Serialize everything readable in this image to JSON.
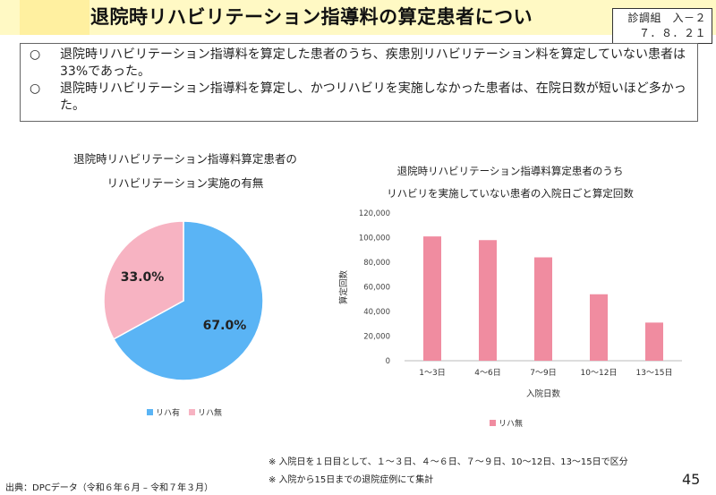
{
  "header": {
    "title": "退院時リハビリテーション指導料の算定患者につい",
    "doc_id_line1": "診調組　入－２",
    "doc_id_line2": "７．８．２１"
  },
  "summary": [
    {
      "mark": "○",
      "text": "退院時リハビリテーション指導料を算定した患者のうち、疾患別リハビリテーション料を算定していない患者は33%であった。"
    },
    {
      "mark": "○",
      "text": "退院時リハビリテーション指導料を算定し、かつリハビリを実施しなかった患者は、在院日数が短いほど多かった。"
    }
  ],
  "colors": {
    "title_bg": "#fff9c4",
    "pie_yes": "#5ab4f5",
    "pie_no": "#f7b3c2",
    "bar": "#f08ca0"
  },
  "chart_data": [
    {
      "type": "pie",
      "title_line1": "退院時リハビリテーション指導料算定患者の",
      "title_line2": "リハビリテーション実施の有無",
      "slices": [
        {
          "label": "リハ有",
          "value": 67.0,
          "display": "67.0%"
        },
        {
          "label": "リハ無",
          "value": 33.0,
          "display": "33.0%"
        }
      ],
      "legend": [
        "リハ有",
        "リハ無"
      ],
      "legend_position": "bottom"
    },
    {
      "type": "bar",
      "title_line1": "退院時リハビリテーション指導料算定患者のうち",
      "title_line2": "リハビリを実施していない患者の入院日ごと算定回数",
      "categories": [
        "1～3日",
        "4～6日",
        "7～9日",
        "10～12日",
        "13～15日"
      ],
      "series": [
        {
          "name": "リハ無",
          "values": [
            101000,
            98000,
            84000,
            54000,
            31000
          ]
        }
      ],
      "xlabel": "入院日数",
      "ylabel": "算定回数",
      "ylim": [
        0,
        120000
      ],
      "yticks": [
        "0",
        "20,000",
        "40,000",
        "60,000",
        "80,000",
        "100,000",
        "120,000"
      ],
      "legend_position": "bottom",
      "grid": false
    }
  ],
  "notes": [
    "※ 入院日を１日目として、１～３日、４～６日、７～９日、10～12日、13～15日で区分",
    "※ 入院から15日までの退院症例にて集計"
  ],
  "source": "出典：DPCデータ（令和６年６月 – 令和７年３月）",
  "page_number": "45"
}
